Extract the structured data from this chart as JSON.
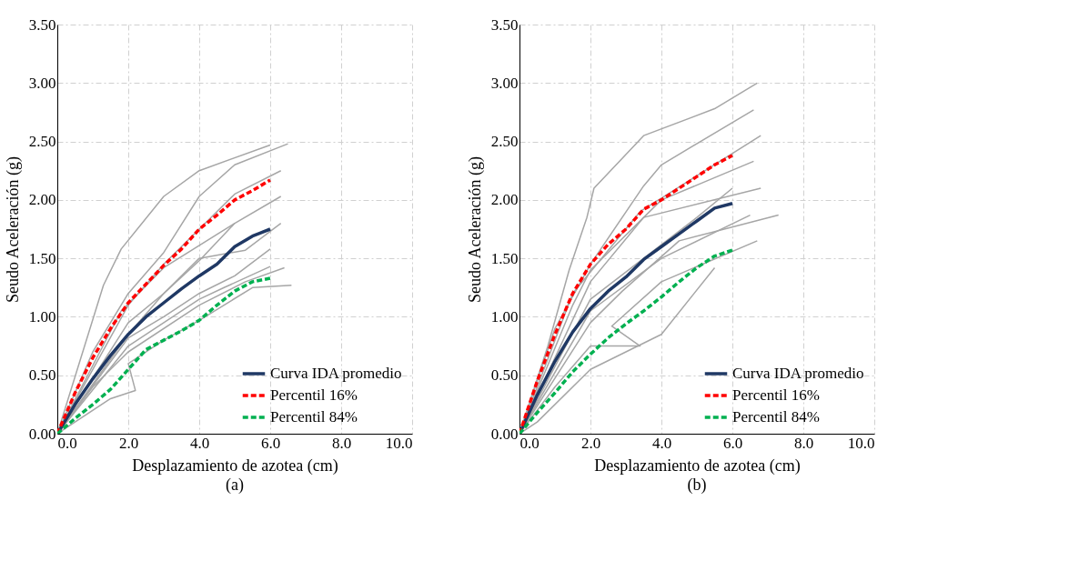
{
  "chart_data": [
    {
      "type": "line",
      "xlabel": "Desplazamiento de azotea (cm)",
      "ylabel": "Seudo Aceleración (g)",
      "annotations": [
        "(a)"
      ],
      "xlim": [
        0,
        10
      ],
      "xticks": [
        {
          "value": 0,
          "label": "0.0"
        },
        {
          "value": 2,
          "label": "2.0"
        },
        {
          "value": 4,
          "label": "4.0"
        },
        {
          "value": 6,
          "label": "6.0"
        },
        {
          "value": 8,
          "label": "8.0"
        },
        {
          "value": 10,
          "label": "10.0"
        }
      ],
      "ylim": [
        0,
        3.5
      ],
      "yticks": [
        {
          "value": 0,
          "label": "0.00"
        },
        {
          "value": 0.5,
          "label": "0.50"
        },
        {
          "value": 1,
          "label": "1.00"
        },
        {
          "value": 1.5,
          "label": "1.50"
        },
        {
          "value": 2,
          "label": "2.00"
        },
        {
          "value": 2.5,
          "label": "2.50"
        },
        {
          "value": 3,
          "label": "3.00"
        },
        {
          "value": 3.5,
          "label": "3.50"
        }
      ],
      "grid": true,
      "legend": "bottom right",
      "line_style": "solid",
      "series": [
        {
          "color": "#a6a6a6",
          "x": [
            0,
            1.3,
            1.8,
            3.0,
            4.0,
            6.0
          ],
          "values": [
            0,
            1.27,
            1.58,
            2.03,
            2.25,
            2.47
          ]
        },
        {
          "color": "#a6a6a6",
          "x": [
            0,
            1.0,
            2.0,
            3.0,
            4.0,
            5.0,
            6.5
          ],
          "values": [
            0,
            0.7,
            1.2,
            1.55,
            2.03,
            2.3,
            2.48
          ]
        },
        {
          "color": "#a6a6a6",
          "x": [
            0,
            2.0,
            3.0,
            4.0,
            5.0,
            6.3
          ],
          "values": [
            0,
            1.1,
            1.45,
            1.75,
            2.05,
            2.25
          ]
        },
        {
          "color": "#a6a6a6",
          "x": [
            0,
            2.0,
            3.0,
            4.0,
            5.0,
            6.3
          ],
          "values": [
            0,
            0.95,
            1.2,
            1.48,
            1.8,
            2.03
          ]
        },
        {
          "color": "#a6a6a6",
          "x": [
            0,
            1.8,
            3.0,
            5.0
          ],
          "values": [
            0,
            1.05,
            1.42,
            1.8
          ]
        },
        {
          "color": "#a6a6a6",
          "x": [
            0,
            2.0,
            3.0,
            4.0,
            5.3,
            6.3
          ],
          "values": [
            0,
            0.85,
            1.2,
            1.5,
            1.57,
            1.8
          ]
        },
        {
          "color": "#a6a6a6",
          "x": [
            0,
            2.0,
            3.0,
            4.0,
            5.0,
            6.0
          ],
          "values": [
            0,
            0.82,
            1.0,
            1.2,
            1.35,
            1.58
          ]
        },
        {
          "color": "#a6a6a6",
          "x": [
            0,
            2.0,
            3.0,
            4.0,
            4.7,
            6.0
          ],
          "values": [
            0,
            0.75,
            0.95,
            1.15,
            1.25,
            1.43
          ]
        },
        {
          "color": "#a6a6a6",
          "x": [
            0,
            1.0,
            2.0,
            4.0,
            5.3,
            6.4
          ],
          "values": [
            0,
            0.4,
            0.7,
            1.1,
            1.3,
            1.42
          ]
        },
        {
          "color": "#a6a6a6",
          "x": [
            0,
            1.5,
            2.2,
            2.0,
            3.0,
            4.0,
            5.5,
            6.6
          ],
          "values": [
            0,
            0.3,
            0.37,
            0.6,
            0.8,
            0.97,
            1.25,
            1.27
          ]
        },
        {
          "name": "Curva IDA promedio",
          "color": "#1f3864",
          "line_style": "solid",
          "x": [
            0,
            0.5,
            1.0,
            1.5,
            2.0,
            2.5,
            3.0,
            3.5,
            4.0,
            4.5,
            5.0,
            5.5,
            6.0
          ],
          "values": [
            0,
            0.25,
            0.47,
            0.67,
            0.85,
            1.0,
            1.12,
            1.24,
            1.35,
            1.45,
            1.6,
            1.69,
            1.75
          ]
        },
        {
          "name": "Percentil 16%",
          "color": "#ff0000",
          "line_style": "dashed",
          "x": [
            0,
            0.5,
            1.0,
            1.5,
            2.0,
            2.5,
            3.0,
            3.5,
            4.0,
            4.5,
            5.0,
            5.5,
            6.0
          ],
          "values": [
            0,
            0.35,
            0.65,
            0.9,
            1.12,
            1.28,
            1.44,
            1.58,
            1.75,
            1.87,
            2.0,
            2.08,
            2.17
          ]
        },
        {
          "name": "Percentil 84%",
          "color": "#00b050",
          "line_style": "dashed",
          "x": [
            0,
            0.5,
            1.0,
            1.5,
            2.0,
            2.5,
            3.0,
            3.5,
            4.0,
            4.5,
            5.0,
            5.5,
            6.0
          ],
          "values": [
            0,
            0.13,
            0.25,
            0.38,
            0.55,
            0.72,
            0.8,
            0.88,
            0.97,
            1.1,
            1.22,
            1.3,
            1.33
          ]
        }
      ]
    },
    {
      "type": "line",
      "xlabel": "Desplazamiento de azotea (cm)",
      "ylabel": "Seudo Aceleración (g)",
      "annotations": [
        "(b)"
      ],
      "xlim": [
        0,
        10
      ],
      "xticks": [
        {
          "value": 0,
          "label": "0.0"
        },
        {
          "value": 2,
          "label": "2.0"
        },
        {
          "value": 4,
          "label": "4.0"
        },
        {
          "value": 6,
          "label": "6.0"
        },
        {
          "value": 8,
          "label": "8.0"
        },
        {
          "value": 10,
          "label": "10.0"
        }
      ],
      "ylim": [
        0,
        3.5
      ],
      "yticks": [
        {
          "value": 0,
          "label": "0.00"
        },
        {
          "value": 0.5,
          "label": "0.50"
        },
        {
          "value": 1,
          "label": "1.00"
        },
        {
          "value": 1.5,
          "label": "1.50"
        },
        {
          "value": 2,
          "label": "2.00"
        },
        {
          "value": 2.5,
          "label": "2.50"
        },
        {
          "value": 3,
          "label": "3.00"
        },
        {
          "value": 3.5,
          "label": "3.50"
        }
      ],
      "grid": true,
      "legend": "bottom right",
      "line_style": "solid",
      "series": [
        {
          "color": "#a6a6a6",
          "x": [
            0,
            0.8,
            1.4,
            1.9,
            2.1,
            3.5,
            5.5,
            6.7
          ],
          "values": [
            0,
            0.75,
            1.4,
            1.85,
            2.1,
            2.55,
            2.78,
            3.0
          ]
        },
        {
          "color": "#a6a6a6",
          "x": [
            0,
            1.0,
            2.0,
            3.5,
            4.0,
            6.6
          ],
          "values": [
            0,
            0.9,
            1.45,
            2.12,
            2.3,
            2.77
          ]
        },
        {
          "color": "#a6a6a6",
          "x": [
            0,
            1.5,
            3.4,
            6.8
          ],
          "values": [
            0,
            1.2,
            1.9,
            2.55
          ]
        },
        {
          "color": "#a6a6a6",
          "x": [
            0,
            1.5,
            2.0,
            4.0,
            6.6
          ],
          "values": [
            0,
            1.1,
            1.4,
            2.0,
            2.33
          ]
        },
        {
          "color": "#a6a6a6",
          "x": [
            0,
            2.0,
            3.5,
            6.8
          ],
          "values": [
            0,
            1.3,
            1.85,
            2.1
          ]
        },
        {
          "color": "#a6a6a6",
          "x": [
            0,
            2.0,
            3.5,
            5.0,
            6.0
          ],
          "values": [
            0,
            1.15,
            1.5,
            1.85,
            2.1
          ]
        },
        {
          "color": "#a6a6a6",
          "x": [
            0,
            2.0,
            4.0,
            6.5
          ],
          "values": [
            0,
            1.05,
            1.5,
            1.87
          ]
        },
        {
          "color": "#a6a6a6",
          "x": [
            0,
            2.0,
            2.9,
            4.5,
            7.3
          ],
          "values": [
            0,
            0.95,
            1.22,
            1.65,
            1.87
          ]
        },
        {
          "color": "#a6a6a6",
          "x": [
            0,
            1.0,
            2.0,
            3.4,
            2.6,
            4.0,
            6.7
          ],
          "values": [
            0,
            0.4,
            0.75,
            0.75,
            0.92,
            1.3,
            1.65
          ]
        },
        {
          "color": "#a6a6a6",
          "x": [
            0,
            0.5,
            2.0,
            4.0,
            5.5
          ],
          "values": [
            0,
            0.1,
            0.55,
            0.85,
            1.42
          ]
        },
        {
          "name": "Curva IDA promedio",
          "color": "#1f3864",
          "line_style": "solid",
          "x": [
            0,
            0.5,
            1.0,
            1.5,
            2.0,
            2.5,
            3.0,
            3.5,
            4.0,
            4.5,
            5.0,
            5.5,
            6.0
          ],
          "values": [
            0,
            0.33,
            0.62,
            0.87,
            1.07,
            1.22,
            1.34,
            1.49,
            1.6,
            1.71,
            1.82,
            1.93,
            1.97
          ]
        },
        {
          "name": "Percentil 16%",
          "color": "#ff0000",
          "line_style": "dashed",
          "x": [
            0,
            0.5,
            1.0,
            1.5,
            2.0,
            2.5,
            3.0,
            3.5,
            4.0,
            4.5,
            5.0,
            5.5,
            6.0
          ],
          "values": [
            0,
            0.45,
            0.85,
            1.2,
            1.45,
            1.62,
            1.75,
            1.92,
            2.0,
            2.1,
            2.2,
            2.3,
            2.38
          ]
        },
        {
          "name": "Percentil 84%",
          "color": "#00b050",
          "line_style": "dashed",
          "x": [
            0,
            0.5,
            1.0,
            1.5,
            2.0,
            2.5,
            3.0,
            3.5,
            4.0,
            4.5,
            5.0,
            5.5,
            6.0
          ],
          "values": [
            0,
            0.18,
            0.35,
            0.53,
            0.68,
            0.82,
            0.94,
            1.05,
            1.17,
            1.3,
            1.42,
            1.52,
            1.57
          ]
        }
      ]
    }
  ]
}
